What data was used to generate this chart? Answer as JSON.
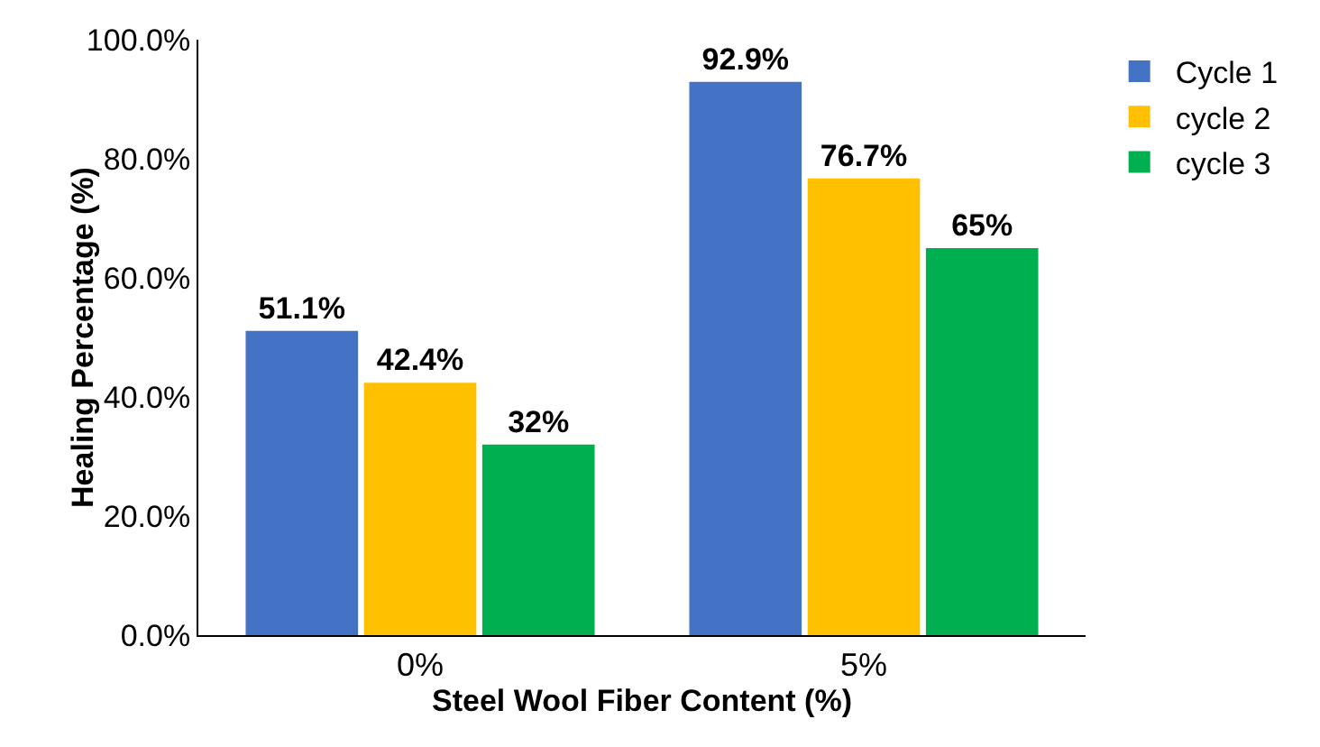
{
  "chart_data": {
    "type": "bar",
    "xlabel": "Steel Wool Fiber Content (%)",
    "ylabel": "Healing Percentage (%)",
    "categories": [
      "0%",
      "5%"
    ],
    "series": [
      {
        "name": "Cycle 1",
        "color": "#4472c4",
        "values": [
          51.1,
          92.9
        ],
        "value_labels": [
          "51.1%",
          "92.9%"
        ]
      },
      {
        "name": "cycle 2",
        "color": "#ffc000",
        "values": [
          42.4,
          76.7
        ],
        "value_labels": [
          "42.4%",
          "76.7%"
        ]
      },
      {
        "name": "cycle 3",
        "color": "#00b050",
        "values": [
          32,
          65
        ],
        "value_labels": [
          "32%",
          "65%"
        ]
      }
    ],
    "ylim": [
      0,
      100
    ],
    "yticks": [
      {
        "value": 0,
        "label": "0.0%"
      },
      {
        "value": 20,
        "label": "20.0%"
      },
      {
        "value": 40,
        "label": "40.0%"
      },
      {
        "value": 60,
        "label": "60.0%"
      },
      {
        "value": 80,
        "label": "80.0%"
      },
      {
        "value": 100,
        "label": "100.0%"
      }
    ],
    "grid": false,
    "legend": "top right"
  }
}
